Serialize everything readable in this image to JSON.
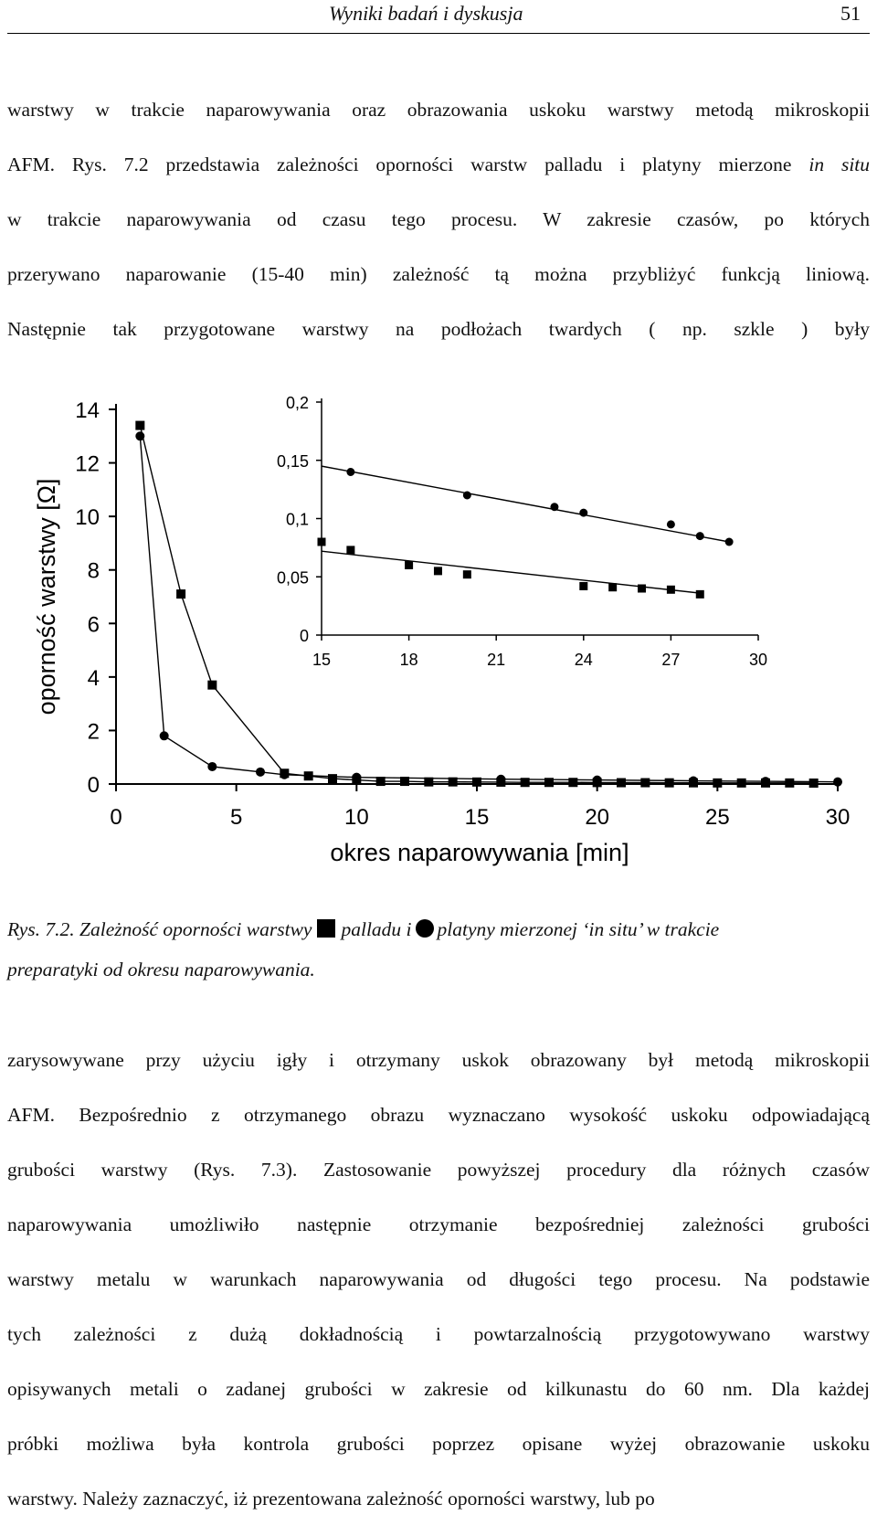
{
  "header": {
    "running_title": "Wyniki badań i dyskusja",
    "page_number": "51"
  },
  "para1": {
    "lines": [
      "warstwy w trakcie naparowywania oraz obrazowania uskoku warstwy metodą mikroskopii",
      "AFM. Rys. 7.2 przedstawia zależności oporności warstw palladu i platyny mierzone",
      "in situ",
      "w trakcie naparowywania od czasu tego procesu. W zakresie czasów, po których",
      "przerywano naparowanie (15-40 min) zależność tą można przybliżyć funkcją liniową.",
      "Następnie tak przygotowane warstwy na podłożach twardych ( np. szkle ) były"
    ]
  },
  "caption": {
    "part1": "Rys. 7.2. Zależność oporności warstwy",
    "part2": "palladu i",
    "part3": "platyny mierzonej ‘in situ’ w trakcie",
    "part4": "preparatyki od okresu naparowywania."
  },
  "para2": {
    "lines": [
      "zarysowywane przy użyciu igły i otrzymany uskok obrazowany był metodą mikroskopii",
      "AFM. Bezpośrednio z otrzymanego obrazu wyznaczano wysokość uskoku odpowiadającą",
      "grubości warstwy (Rys. 7.3). Zastosowanie powyższej procedury dla różnych czasów",
      "naparowywania umożliwiło następnie otrzymanie bezpośredniej zależności grubości",
      "warstwy metalu w warunkach naparowywania od długości tego procesu. Na podstawie",
      "tych zależności z dużą dokładnością i powtarzalnością przygotowywano warstwy",
      "opisywanych metali o zadanej grubości w zakresie od kilkunastu do 60 nm. Dla każdej",
      "próbki możliwa była kontrola grubości poprzez opisane wyżej obrazowanie uskoku",
      "warstwy. Należy zaznaczyć, iż prezentowana zależność oporności warstwy, lub po"
    ]
  },
  "chart_data": [
    {
      "type": "scatter",
      "xlabel": "okres naparowywania [min]",
      "ylabel": "oporność warstwy [Ω]",
      "xlim": [
        0,
        30
      ],
      "ylim": [
        0,
        14
      ],
      "xticks": [
        "0",
        "5",
        "10",
        "15",
        "20",
        "25",
        "30"
      ],
      "yticks": [
        "0",
        "2",
        "4",
        "6",
        "8",
        "10",
        "12",
        "14"
      ],
      "grid": false,
      "series": [
        {
          "marker": "square",
          "x": [
            1,
            2.7,
            4,
            7,
            8,
            9,
            10,
            11,
            12,
            13,
            14,
            15,
            16,
            17,
            18,
            19,
            20,
            21,
            22,
            23,
            24,
            25,
            26,
            27,
            28,
            29
          ],
          "y": [
            13.4,
            7.1,
            3.7,
            0.4,
            0.3,
            0.2,
            0.15,
            0.1,
            0.1,
            0.08,
            0.08,
            0.075,
            0.07,
            0.06,
            0.06,
            0.06,
            0.055,
            0.05,
            0.05,
            0.045,
            0.045,
            0.04,
            0.04,
            0.04,
            0.04,
            0.035
          ]
        },
        {
          "marker": "circle",
          "x": [
            1,
            2,
            4,
            6,
            7,
            10,
            16,
            20,
            24,
            27,
            30
          ],
          "y": [
            13.0,
            1.8,
            0.65,
            0.45,
            0.35,
            0.25,
            0.18,
            0.15,
            0.12,
            0.1,
            0.08
          ]
        }
      ]
    },
    {
      "type": "scatter",
      "xlim": [
        15,
        30
      ],
      "ylim": [
        0,
        0.2
      ],
      "xticks": [
        "15",
        "18",
        "21",
        "24",
        "27",
        "30"
      ],
      "yticks": [
        "0",
        "0,05",
        "0,1",
        "0,15",
        "0,2"
      ],
      "grid": false,
      "series": [
        {
          "marker": "square",
          "x": [
            15,
            16,
            18,
            19,
            20,
            24,
            25,
            26,
            27,
            28
          ],
          "y": [
            0.08,
            0.073,
            0.06,
            0.055,
            0.052,
            0.042,
            0.041,
            0.04,
            0.039,
            0.035
          ],
          "fit": [
            [
              15,
              0.072
            ],
            [
              28,
              0.036
            ]
          ]
        },
        {
          "marker": "circle",
          "x": [
            16,
            20,
            23,
            24,
            27,
            28,
            29
          ],
          "y": [
            0.14,
            0.12,
            0.11,
            0.105,
            0.095,
            0.085,
            0.08
          ],
          "fit": [
            [
              15,
              0.145
            ],
            [
              29,
              0.08
            ]
          ]
        }
      ]
    }
  ]
}
